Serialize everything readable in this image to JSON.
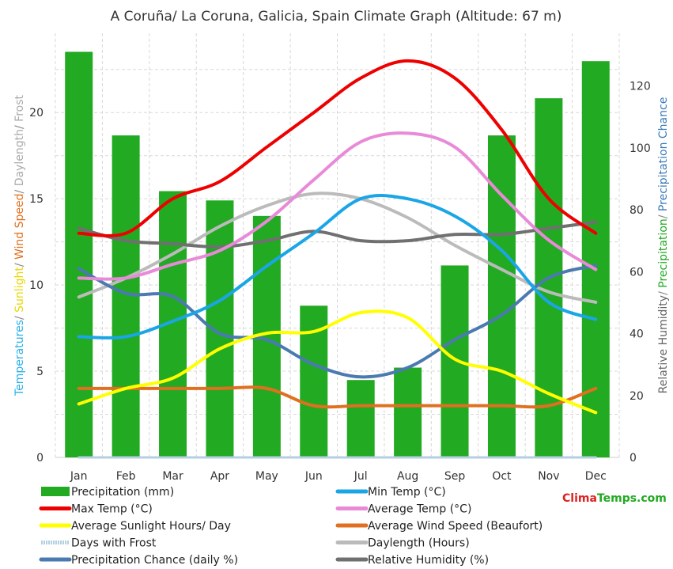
{
  "chart_data": {
    "type": "bar+line",
    "title": "A Coruña/ La Coruna, Galicia, Spain Climate Graph (Altitude: 67 m)",
    "categories": [
      "Jan",
      "Feb",
      "Mar",
      "Apr",
      "May",
      "Jun",
      "Jul",
      "Aug",
      "Sep",
      "Oct",
      "Nov",
      "Dec"
    ],
    "left_axis": {
      "label_parts": [
        {
          "text": "Temperatures",
          "color": "#2ab0e8"
        },
        {
          "text": "/ ",
          "color": "#888888"
        },
        {
          "text": "Sunlight",
          "color": "#e8d800"
        },
        {
          "text": "/ ",
          "color": "#888888"
        },
        {
          "text": "Wind Speed",
          "color": "#e07020"
        },
        {
          "text": "/ ",
          "color": "#888888"
        },
        {
          "text": "Daylength",
          "color": "#aaaaaa"
        },
        {
          "text": "/ ",
          "color": "#888888"
        },
        {
          "text": "Frost",
          "color": "#aaaaaa"
        }
      ],
      "ylim": [
        0,
        24.6
      ],
      "ticks": [
        0,
        5,
        10,
        15,
        20
      ],
      "tick_labels": [
        "0",
        "5",
        "10",
        "15",
        "20"
      ]
    },
    "right_axis": {
      "label_parts": [
        {
          "text": "Relative Humidity",
          "color": "#666666"
        },
        {
          "text": "/ ",
          "color": "#888888"
        },
        {
          "text": "Precipitation",
          "color": "#22aa22"
        },
        {
          "text": "/ ",
          "color": "#888888"
        },
        {
          "text": "Precipitation Chance",
          "color": "#3a7ab8"
        }
      ],
      "ylim": [
        0,
        137
      ],
      "ticks": [
        0,
        20,
        40,
        60,
        80,
        100,
        120
      ],
      "tick_labels": [
        "0",
        "20",
        "40",
        "60",
        "80",
        "100",
        "120"
      ]
    },
    "bars": {
      "name": "Precipitation (mm)",
      "axis": "right",
      "color": "#22aa22",
      "values": [
        131,
        104,
        86,
        83,
        78,
        49,
        25,
        29,
        62,
        104,
        116,
        128
      ]
    },
    "series": [
      {
        "name": "Days with Frost",
        "axis": "left",
        "color": "#b4cfe0",
        "width": 3,
        "values": [
          0,
          0,
          0,
          0,
          0,
          0,
          0,
          0,
          0,
          0,
          0,
          0
        ]
      },
      {
        "name": "Daylength (Hours)",
        "axis": "left",
        "color": "#bbbbbb",
        "width": 4,
        "values": [
          9.3,
          10.4,
          11.8,
          13.4,
          14.6,
          15.3,
          15.0,
          13.9,
          12.3,
          10.9,
          9.6,
          9.0
        ]
      },
      {
        "name": "Average Wind Speed (Beaufort)",
        "axis": "left",
        "color": "#e07020",
        "width": 4,
        "values": [
          4,
          4,
          4,
          4,
          4,
          3,
          3,
          3,
          3,
          3,
          3,
          4
        ]
      },
      {
        "name": "Relative Humidity (%)",
        "axis": "right",
        "color": "#707070",
        "width": 4,
        "values": [
          74,
          70,
          69,
          68,
          70,
          73,
          70,
          70,
          72,
          72,
          74,
          76
        ]
      },
      {
        "name": "Precipitation Chance (daily %)",
        "axis": "right",
        "color": "#4a7ab0",
        "width": 4,
        "values": [
          61,
          53,
          52,
          40,
          38,
          30,
          26,
          29,
          38,
          46,
          58,
          62
        ]
      },
      {
        "name": "Average Sunlight Hours/ Day",
        "axis": "left",
        "color": "#ffff00",
        "width": 4,
        "values": [
          3.1,
          4.0,
          4.6,
          6.3,
          7.2,
          7.3,
          8.4,
          8.1,
          5.7,
          5.0,
          3.7,
          2.6
        ]
      },
      {
        "name": "Min Temp (°C)",
        "axis": "left",
        "color": "#1aa6e6",
        "width": 4,
        "values": [
          7.0,
          7.0,
          7.9,
          9.1,
          11.1,
          13.0,
          15.0,
          15.0,
          14.0,
          12.0,
          9.0,
          8.0
        ]
      },
      {
        "name": "Average Temp (°C)",
        "axis": "left",
        "color": "#e88ad8",
        "width": 4,
        "values": [
          10.4,
          10.4,
          11.2,
          12.0,
          13.7,
          16.1,
          18.3,
          18.8,
          18.0,
          15.2,
          12.6,
          10.9
        ]
      },
      {
        "name": "Max Temp (°C)",
        "axis": "left",
        "color": "#ee0000",
        "width": 4,
        "values": [
          13.0,
          13.0,
          15.0,
          16.0,
          18.0,
          20.0,
          22.0,
          23.0,
          22.0,
          19.0,
          15.0,
          13.0
        ]
      }
    ],
    "legend": [
      {
        "label": "Precipitation (mm)",
        "color": "#22aa22",
        "kind": "bar"
      },
      {
        "label": "Min Temp (°C)",
        "color": "#1aa6e6",
        "kind": "line"
      },
      {
        "label": "Max Temp (°C)",
        "color": "#ee0000",
        "kind": "line"
      },
      {
        "label": "Average Temp (°C)",
        "color": "#e88ad8",
        "kind": "line"
      },
      {
        "label": "Average Sunlight Hours/ Day",
        "color": "#ffff00",
        "kind": "line"
      },
      {
        "label": "Average Wind Speed (Beaufort)",
        "color": "#e07020",
        "kind": "line"
      },
      {
        "label": "Days with Frost",
        "color": "#b4cfe0",
        "kind": "dotted"
      },
      {
        "label": "Daylength (Hours)",
        "color": "#bbbbbb",
        "kind": "line"
      },
      {
        "label": "Precipitation Chance (daily %)",
        "color": "#4a7ab0",
        "kind": "line"
      },
      {
        "label": "Relative Humidity (%)",
        "color": "#707070",
        "kind": "line"
      }
    ],
    "grid": true
  },
  "brand": {
    "part1": "Clima",
    "part2": "Temps.com"
  }
}
